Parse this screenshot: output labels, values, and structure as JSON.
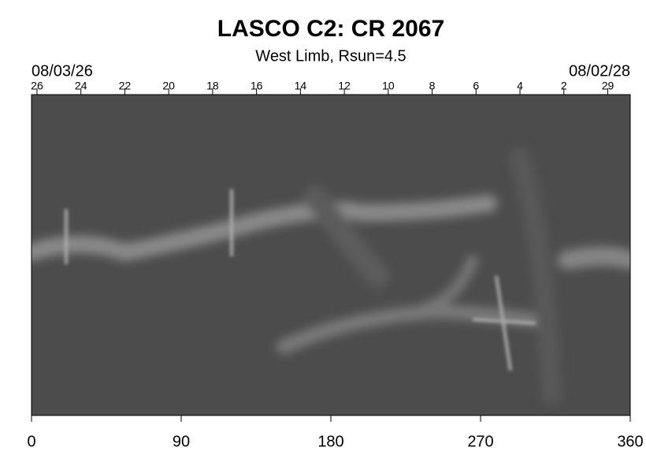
{
  "chart_data": {
    "type": "image",
    "title": "LASCO C2: CR 2067",
    "subtitle": "West Limb, Rsun=4.5",
    "xlim": [
      0,
      360
    ],
    "xticks": [
      0,
      90,
      180,
      270,
      360
    ],
    "x2_start_label": "08/03/26",
    "x2_end_label": "08/02/28",
    "x2ticks": [
      {
        "value": 3.3,
        "label": "26"
      },
      {
        "value": 29.7,
        "label": "24"
      },
      {
        "value": 56.1,
        "label": "22"
      },
      {
        "value": 82.5,
        "label": "20"
      },
      {
        "value": 108.9,
        "label": "18"
      },
      {
        "value": 135.3,
        "label": "16"
      },
      {
        "value": 161.7,
        "label": "14"
      },
      {
        "value": 188.1,
        "label": "12"
      },
      {
        "value": 214.5,
        "label": "10"
      },
      {
        "value": 240.9,
        "label": "8"
      },
      {
        "value": 267.3,
        "label": "6"
      },
      {
        "value": 293.7,
        "label": "4"
      },
      {
        "value": 320.1,
        "label": "2"
      },
      {
        "value": 346.5,
        "label": "29"
      }
    ]
  }
}
